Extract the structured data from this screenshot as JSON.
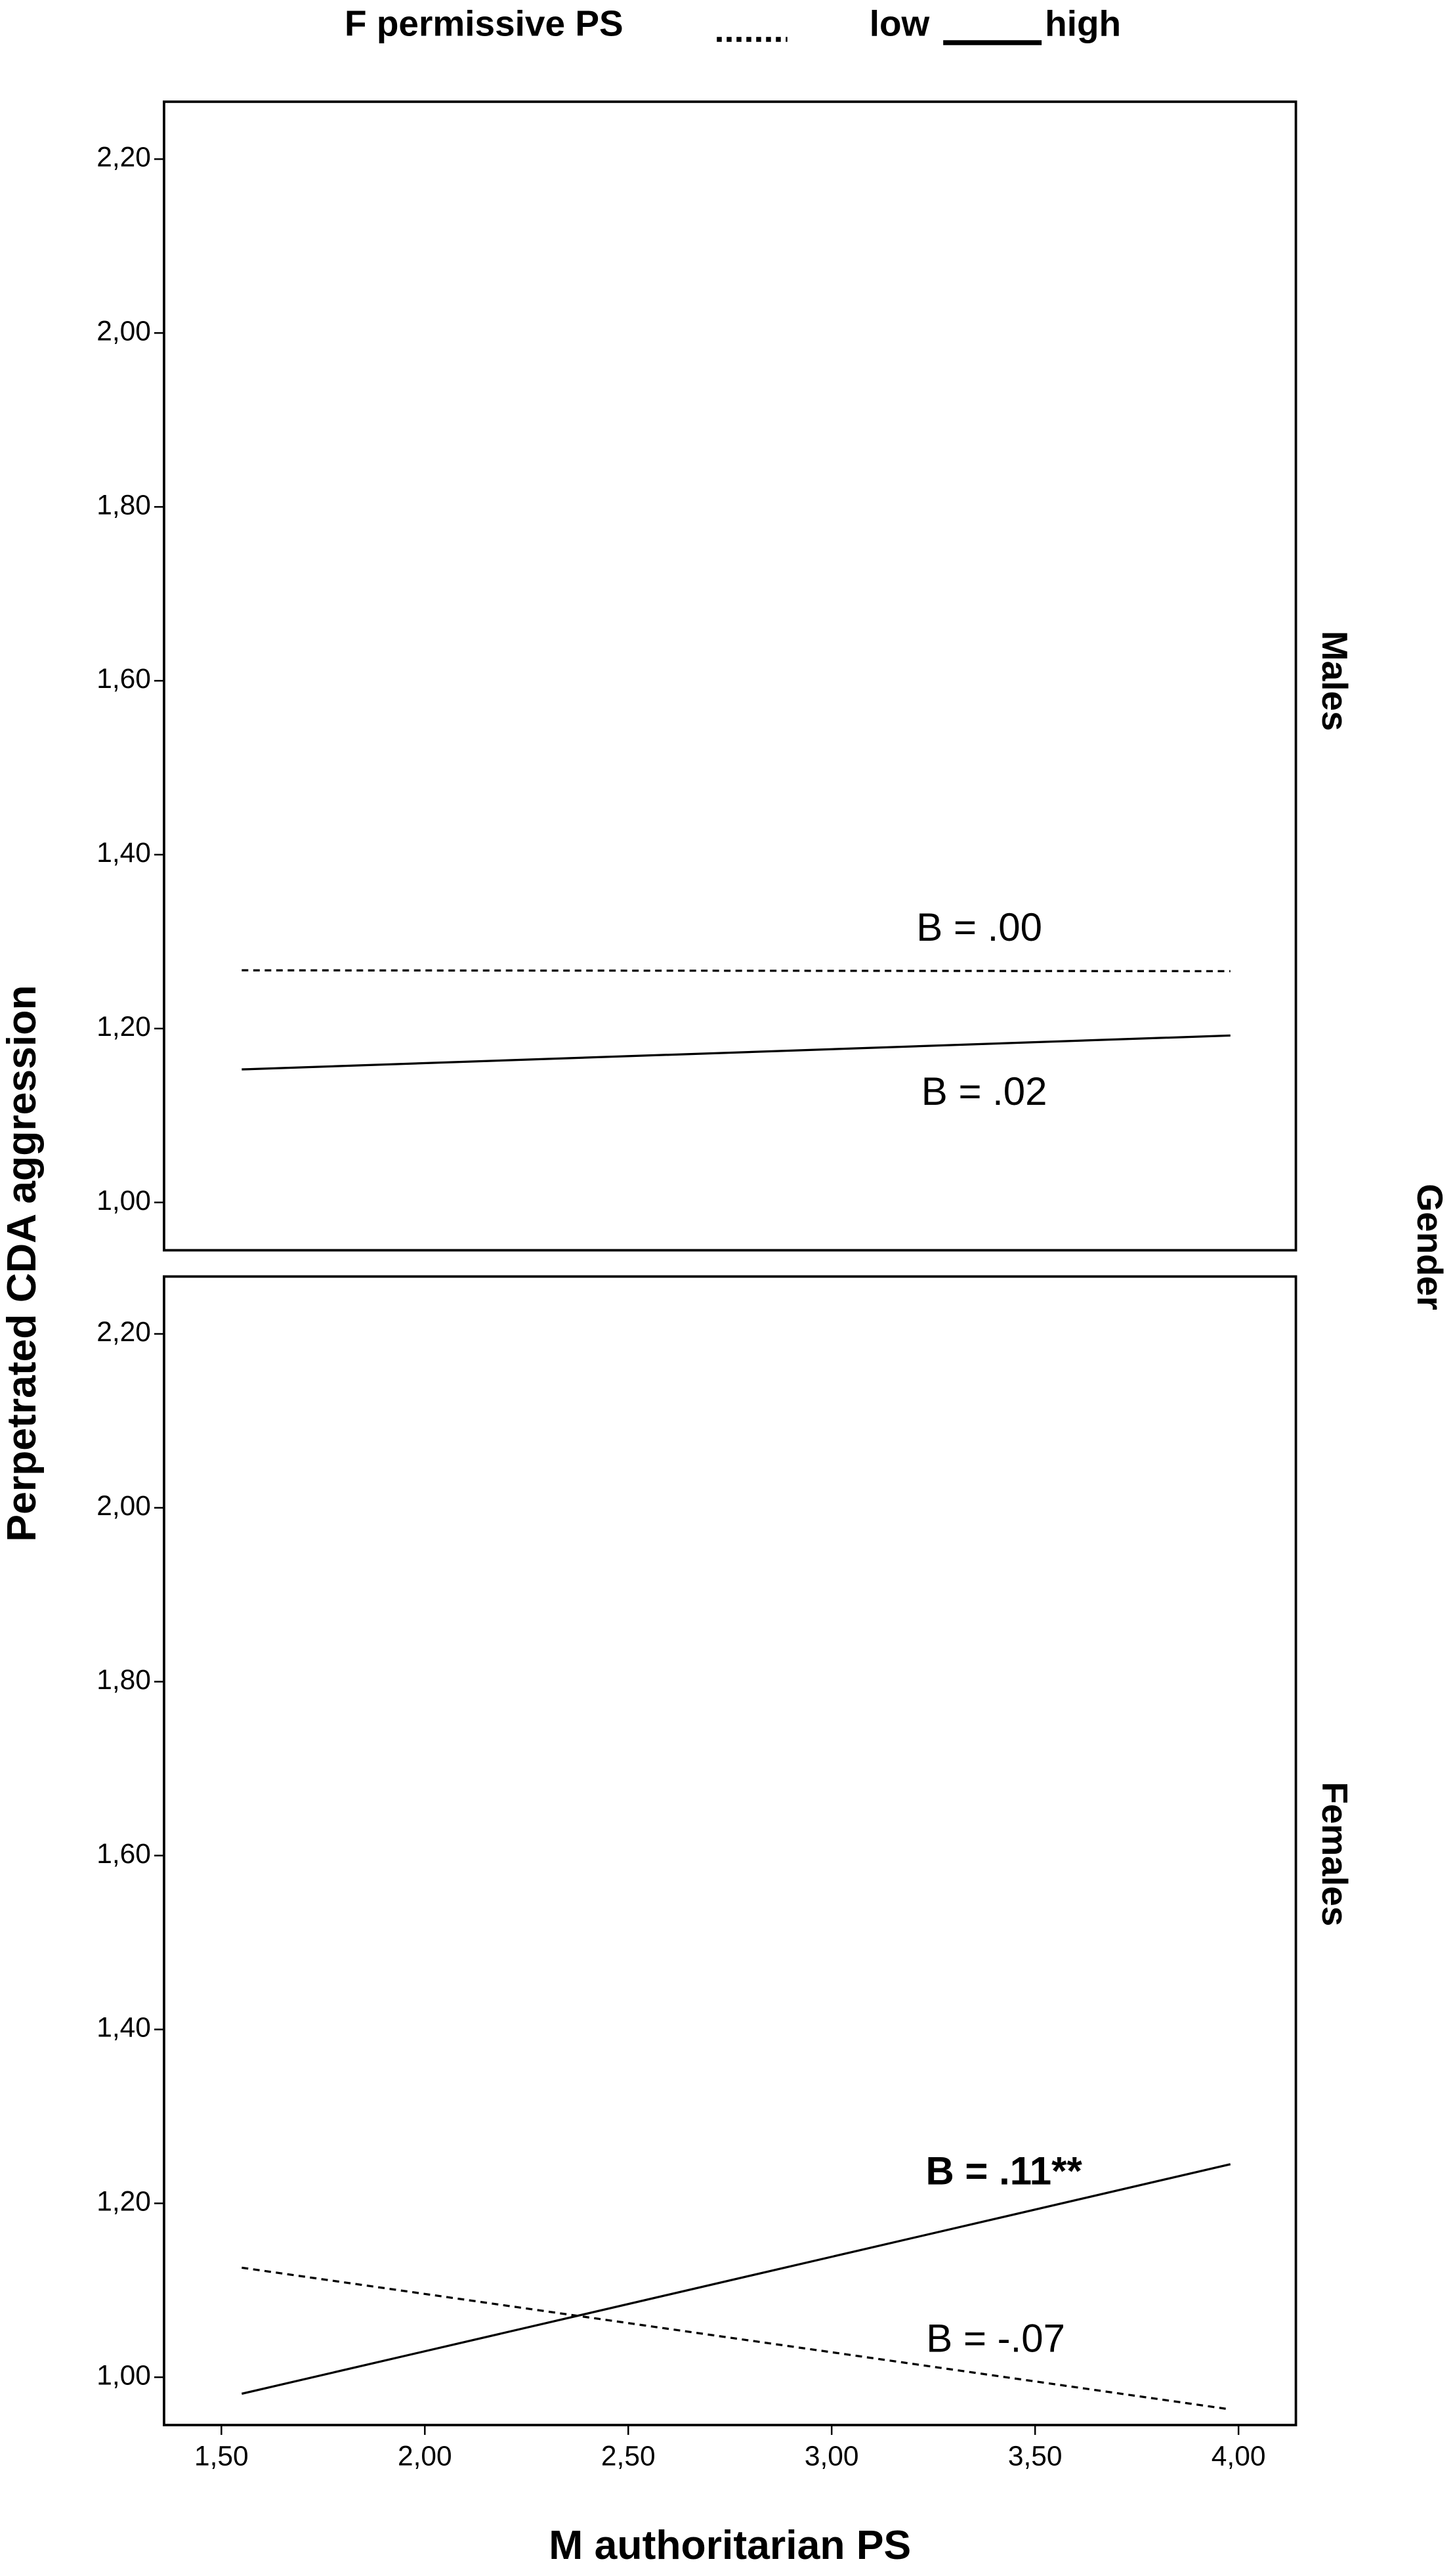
{
  "chart_data": {
    "type": "line",
    "legend_title": "F permissive PS",
    "x_label": "M authoritarian PS",
    "y_label": "Perpetrated CDA aggression",
    "facet_title": "Gender",
    "color": "#000000",
    "xlim": [
      1.359,
      4.141
    ],
    "xticks": [
      {
        "value": 1.5,
        "label": "1,50"
      },
      {
        "value": 2.0,
        "label": "2,00"
      },
      {
        "value": 2.5,
        "label": "2,50"
      },
      {
        "value": 3.0,
        "label": "3,00"
      },
      {
        "value": 3.5,
        "label": "3,50"
      },
      {
        "value": 4.0,
        "label": "4,00"
      }
    ],
    "ylim": [
      0.945,
      2.266
    ],
    "yticks": [
      {
        "value": 1.0,
        "label": "1,00"
      },
      {
        "value": 1.2,
        "label": "1,20"
      },
      {
        "value": 1.4,
        "label": "1,40"
      },
      {
        "value": 1.6,
        "label": "1,60"
      },
      {
        "value": 1.8,
        "label": "1,80"
      },
      {
        "value": 2.0,
        "label": "2,00"
      },
      {
        "value": 2.2,
        "label": "2,20"
      }
    ],
    "x": [
      1.55,
      3.98
    ],
    "panels": [
      {
        "name": "Males",
        "series": [
          {
            "name": "low",
            "dash": "dashed",
            "values": [
              1.267,
              1.266
            ],
            "label": "B = .00"
          },
          {
            "name": "high",
            "dash": "solid",
            "values": [
              1.153,
              1.192
            ],
            "label": "B = .02"
          }
        ]
      },
      {
        "name": "Females",
        "series": [
          {
            "name": "low",
            "dash": "dashed",
            "values": [
              1.126,
              0.963
            ],
            "label": "B = -.07"
          },
          {
            "name": "high",
            "dash": "solid",
            "values": [
              0.981,
              1.245
            ],
            "label": "B = .11**",
            "bold": true
          }
        ]
      }
    ]
  }
}
